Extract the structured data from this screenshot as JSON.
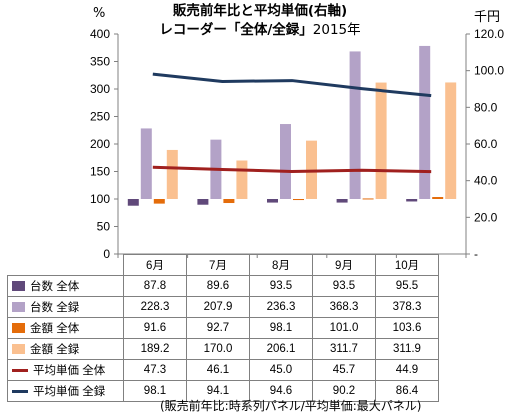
{
  "title_line1": "販売前年比と平均単価(右軸)",
  "title_line2": "レコーダー「全体/全録」",
  "title_year": "2015年",
  "left_unit": "%",
  "right_unit": "千円",
  "note": "(販売前年比:時系列パネル/平均単価:最大パネル)",
  "chart_data": {
    "type": "bar",
    "categories": [
      "6月",
      "7月",
      "8月",
      "9月",
      "10月"
    ],
    "y_left_lim": [
      0,
      400
    ],
    "y_left_ticks": [
      "0",
      "50",
      "100",
      "150",
      "200",
      "250",
      "300",
      "350",
      "400"
    ],
    "y_right_lim": [
      0,
      120
    ],
    "y_right_ticks": [
      "-",
      "20.0",
      "40.0",
      "60.0",
      "80.0",
      "100.0",
      "120.0"
    ],
    "bar_baseline": 100,
    "grid": false,
    "series": [
      {
        "name": "台数 全体",
        "kind": "bar",
        "axis": "left",
        "color": "#60497A",
        "values": [
          87.8,
          89.6,
          93.5,
          93.5,
          95.5
        ],
        "labels": [
          "87.8",
          "89.6",
          "93.5",
          "93.5",
          "95.5"
        ]
      },
      {
        "name": "台数 全録",
        "kind": "bar",
        "axis": "left",
        "color": "#B3A2C7",
        "values": [
          228.3,
          207.9,
          236.3,
          368.3,
          378.3
        ],
        "labels": [
          "228.3",
          "207.9",
          "236.3",
          "368.3",
          "378.3"
        ]
      },
      {
        "name": "金額 全体",
        "kind": "bar",
        "axis": "left",
        "color": "#E46C0A",
        "values": [
          91.6,
          92.7,
          98.1,
          101.0,
          103.6
        ],
        "labels": [
          "91.6",
          "92.7",
          "98.1",
          "101.0",
          "103.6"
        ]
      },
      {
        "name": "金額 全録",
        "kind": "bar",
        "axis": "left",
        "color": "#FAC090",
        "values": [
          189.2,
          170.0,
          206.1,
          311.7,
          311.9
        ],
        "labels": [
          "189.2",
          "170.0",
          "206.1",
          "311.7",
          "311.9"
        ]
      },
      {
        "name": "平均単価 全体",
        "kind": "line",
        "axis": "right",
        "color": "#A0201E",
        "values": [
          47.3,
          46.1,
          45.0,
          45.7,
          44.9
        ],
        "labels": [
          "47.3",
          "46.1",
          "45.0",
          "45.7",
          "44.9"
        ]
      },
      {
        "name": "平均単価 全録",
        "kind": "line",
        "axis": "right",
        "color": "#1F3A5F",
        "values": [
          98.1,
          94.1,
          94.6,
          90.2,
          86.4
        ],
        "labels": [
          "98.1",
          "94.1",
          "94.6",
          "90.2",
          "86.4"
        ]
      }
    ]
  }
}
